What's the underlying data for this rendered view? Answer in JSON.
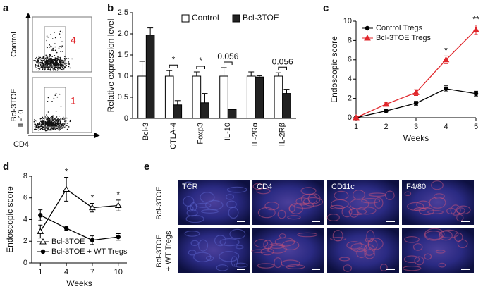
{
  "chart_data": [
    {
      "type": "bar",
      "panel": "b",
      "ylabel": "Relative expression level",
      "categories": [
        "Bcl-3",
        "CTLA-4",
        "Foxp3",
        "IL-10",
        "IL-2Rα",
        "IL-2Rβ"
      ],
      "series": [
        {
          "name": "Control",
          "color": "#ffffff",
          "values": [
            1,
            1,
            1,
            1,
            1,
            1
          ],
          "errors": [
            0.35,
            0.13,
            0.1,
            0.2,
            0.1,
            0.08
          ]
        },
        {
          "name": "Bcl-3TOE",
          "color": "#222222",
          "values": [
            1.97,
            0.32,
            0.37,
            0.21,
            0.98,
            0.59
          ],
          "errors": [
            0.17,
            0.1,
            0.22,
            0.01,
            0.03,
            0.1
          ]
        }
      ],
      "ylim": [
        0,
        2.5
      ],
      "yticks": [
        0,
        0.5,
        {
          "value": 1,
          "label": "1.0"
        },
        1.5,
        {
          "value": 2,
          "label": "2.0"
        },
        2.5
      ],
      "legend": "top",
      "annotations": [
        {
          "text": "*",
          "category": "CTLA-4"
        },
        {
          "text": "*",
          "category": "Foxp3"
        },
        {
          "text": "0.056",
          "category": "IL-10"
        },
        {
          "text": "0.056",
          "category": "IL-2Rβ"
        }
      ]
    },
    {
      "type": "line",
      "panel": "c",
      "xlabel": "Weeks",
      "ylabel": "Endoscopic score",
      "x": [
        1,
        2,
        3,
        4,
        5
      ],
      "xlim": [
        1,
        5
      ],
      "xticks": [
        1,
        2,
        3,
        4,
        5
      ],
      "ylim": [
        0,
        10
      ],
      "yticks": [
        0,
        2,
        4,
        6,
        8,
        10
      ],
      "legend": "upper left",
      "series": [
        {
          "name": "Control Tregs",
          "color": "#000000",
          "marker": "circle",
          "values": [
            0,
            0.7,
            1.5,
            3.0,
            2.5
          ],
          "errors": [
            0.05,
            0.1,
            0.2,
            0.3,
            0.25
          ]
        },
        {
          "name": "Bcl-3TOE Tregs",
          "color": "#e0262b",
          "marker": "triangle",
          "values": [
            0,
            1.4,
            2.6,
            6.0,
            9.1
          ],
          "errors": [
            0.05,
            0.2,
            0.3,
            0.4,
            0.5
          ]
        }
      ],
      "annotations": [
        {
          "text": "*",
          "x": 4
        },
        {
          "text": "**",
          "x": 5
        }
      ]
    },
    {
      "type": "line",
      "panel": "d",
      "xlabel": "Weeks",
      "ylabel": "Endoscopic score",
      "x": [
        1,
        4,
        7,
        10
      ],
      "xlim": [
        0,
        11
      ],
      "xticks": [
        1,
        4,
        7,
        10
      ],
      "ylim": [
        0,
        8
      ],
      "yticks": [
        0,
        2,
        4,
        6,
        8
      ],
      "legend": "lower left",
      "series": [
        {
          "name": "Bcl-3TOE",
          "color": "#000000",
          "marker": "open-triangle",
          "values": [
            2.9,
            6.8,
            5.1,
            5.3
          ],
          "errors": [
            0.6,
            1.1,
            0.4,
            0.5
          ]
        },
        {
          "name": "Bcl-3TOE + WT Tregs",
          "color": "#000000",
          "marker": "circle",
          "values": [
            4.4,
            3.2,
            2.1,
            2.4
          ],
          "errors": [
            0.5,
            0.2,
            0.4,
            0.3
          ]
        }
      ],
      "annotations": [
        {
          "text": "*",
          "x": 4
        },
        {
          "text": "*",
          "x": 7
        },
        {
          "text": "*",
          "x": 10
        }
      ]
    }
  ],
  "panels": {
    "a": {
      "label": "a",
      "rows": [
        {
          "label": "Control",
          "gate_value": "4"
        },
        {
          "label": "Bcl-3TOE",
          "gate_value": "1"
        }
      ],
      "y_axis": "IL-10",
      "x_axis": "CD4"
    },
    "e": {
      "label": "e",
      "columns": [
        "TCR",
        "CD4",
        "CD11c",
        "F4/80"
      ],
      "rows": [
        [
          "Bcl-3TOE"
        ],
        [
          "Bcl-3TOE",
          "+ WT Tregs"
        ]
      ]
    }
  }
}
